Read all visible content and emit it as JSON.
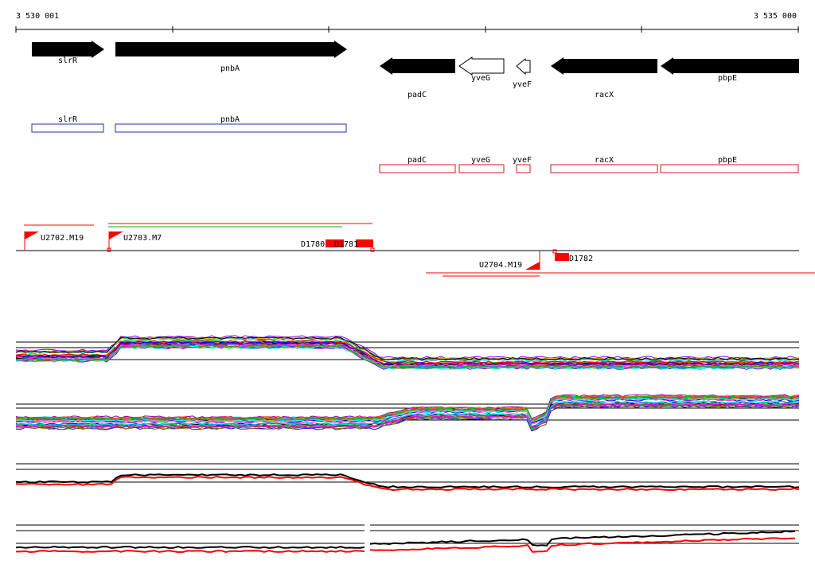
{
  "ruler": {
    "start_label": "3 530 001",
    "end_label": "3 535 000"
  },
  "genes": [
    {
      "name": "slrR",
      "strand": "+",
      "style": "filled"
    },
    {
      "name": "pnbA",
      "strand": "+",
      "style": "filled"
    },
    {
      "name": "padC",
      "strand": "-",
      "style": "filled"
    },
    {
      "name": "yveG",
      "strand": "-",
      "style": "outline"
    },
    {
      "name": "yveF",
      "strand": "-",
      "style": "outline"
    },
    {
      "name": "racX",
      "strand": "-",
      "style": "filled"
    },
    {
      "name": "pbpE",
      "strand": "-",
      "style": "filled"
    }
  ],
  "annotations_forward": [
    {
      "label": "slrR",
      "color": "#1f2fb8"
    },
    {
      "label": "pnbA",
      "color": "#1f2fb8"
    }
  ],
  "annotations_reverse": [
    {
      "label": "padC",
      "color": "#d01818"
    },
    {
      "label": "yveG",
      "color": "#d01818"
    },
    {
      "label": "yveF",
      "color": "#d01818"
    },
    {
      "label": "racX",
      "color": "#d01818"
    },
    {
      "label": "pbpE",
      "color": "#d01818"
    }
  ],
  "features_forward": [
    {
      "label": "U2702.M19",
      "type": "flag"
    },
    {
      "label": "U2703.M7",
      "type": "flag"
    },
    {
      "label": "D1780",
      "type": "box"
    },
    {
      "label": "D1781",
      "type": "box"
    }
  ],
  "features_reverse": [
    {
      "label": "U2704.M19",
      "type": "flag"
    },
    {
      "label": "D1782",
      "type": "box"
    }
  ],
  "colors": {
    "arrow_fill": "#000000",
    "forward_annotation": "#1f2fb8",
    "reverse_annotation": "#d01818",
    "feature_red": "#ff0000",
    "feature_green": "#00b000"
  }
}
